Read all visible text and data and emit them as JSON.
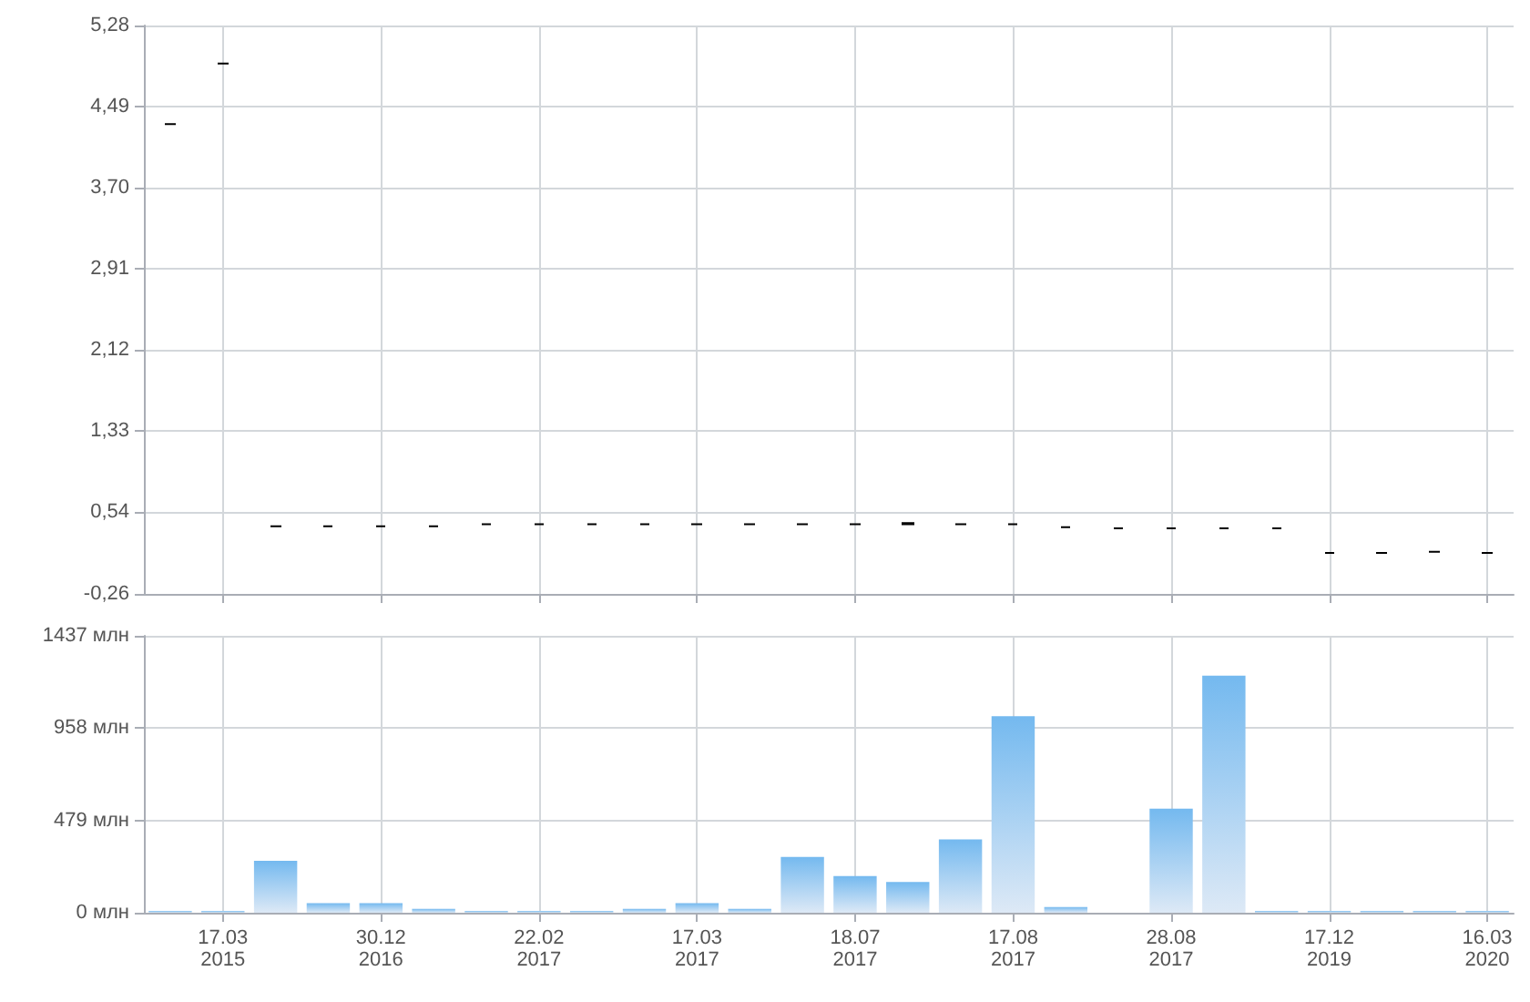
{
  "chart_data": [
    {
      "type": "candlestick",
      "ohlc": [
        [
          4.32,
          4.32,
          4.32,
          4.32
        ],
        [
          4.91,
          4.91,
          4.91,
          4.91
        ],
        [
          0.4,
          0.4,
          0.4,
          0.4
        ],
        [
          0.4,
          0.4,
          0.4,
          0.4
        ],
        [
          0.4,
          0.4,
          0.4,
          0.4
        ],
        [
          0.4,
          0.4,
          0.4,
          0.4
        ],
        [
          0.42,
          0.42,
          0.42,
          0.42
        ],
        [
          0.42,
          0.42,
          0.42,
          0.42
        ],
        [
          0.42,
          0.42,
          0.42,
          0.42
        ],
        [
          0.42,
          0.42,
          0.42,
          0.42
        ],
        [
          0.42,
          0.42,
          0.42,
          0.42
        ],
        [
          0.42,
          0.42,
          0.42,
          0.42
        ],
        [
          0.42,
          0.42,
          0.42,
          0.42
        ],
        [
          0.42,
          0.42,
          0.42,
          0.42
        ],
        [
          0.42,
          0.43,
          0.42,
          0.42
        ],
        [
          0.42,
          0.42,
          0.42,
          0.42
        ],
        [
          0.42,
          0.42,
          0.42,
          0.42
        ],
        [
          0.39,
          0.39,
          0.39,
          0.39
        ],
        [
          0.38,
          0.38,
          0.38,
          0.38
        ],
        [
          0.38,
          0.38,
          0.38,
          0.38
        ],
        [
          0.38,
          0.38,
          0.38,
          0.38
        ],
        [
          0.38,
          0.38,
          0.38,
          0.38
        ],
        [
          0.14,
          0.14,
          0.14,
          0.14
        ],
        [
          0.14,
          0.14,
          0.14,
          0.14
        ],
        [
          0.15,
          0.15,
          0.15,
          0.15
        ],
        [
          0.14,
          0.14,
          0.14,
          0.14
        ]
      ],
      "color": "#000000",
      "ylim": [
        -0.26,
        5.28
      ],
      "yticks": [
        {
          "value": -0.26,
          "label": "-0,26"
        },
        {
          "value": 0.54,
          "label": "0,54"
        },
        {
          "value": 1.33,
          "label": "1,33"
        },
        {
          "value": 2.12,
          "label": "2,12"
        },
        {
          "value": 2.91,
          "label": "2,91"
        },
        {
          "value": 3.7,
          "label": "3,70"
        },
        {
          "value": 4.49,
          "label": "4,49"
        },
        {
          "value": 5.28,
          "label": "5,28"
        }
      ],
      "grid": true,
      "tick_labels": "y"
    },
    {
      "type": "bar",
      "categories": [
        null,
        "17.03\n2015",
        null,
        null,
        "30.12\n2016",
        null,
        null,
        "22.02\n2017",
        null,
        null,
        "17.03\n2017",
        null,
        null,
        "18.07\n2017",
        null,
        null,
        "17.08\n2017",
        null,
        null,
        "28.08\n2017",
        null,
        null,
        "17.12\n2019",
        null,
        null,
        "16.03\n2020"
      ],
      "values": [
        10,
        10,
        270,
        50,
        50,
        20,
        10,
        10,
        10,
        20,
        50,
        20,
        290,
        190,
        160,
        380,
        1020,
        30,
        0,
        540,
        1230,
        10,
        10,
        10,
        10,
        10
      ],
      "color": "#74b9ef",
      "ylim": [
        0,
        1437
      ],
      "yticks": [
        {
          "value": 0,
          "label": "0 млн"
        },
        {
          "value": 479,
          "label": "479 млн"
        },
        {
          "value": 958,
          "label": "958 млн"
        },
        {
          "value": 1437,
          "label": "1437 млн"
        }
      ],
      "grid": true
    }
  ]
}
